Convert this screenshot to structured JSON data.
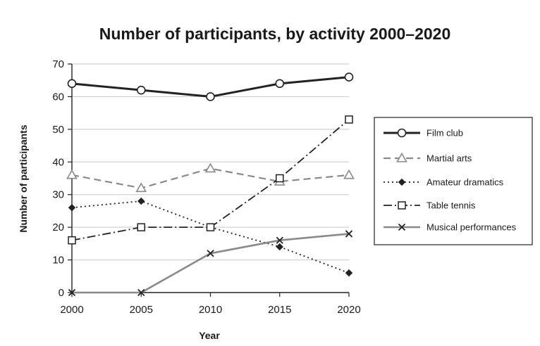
{
  "chart_data": {
    "type": "line",
    "title": "Number of participants, by activity 2000–2020",
    "xlabel": "Year",
    "ylabel": "Number of participants",
    "x": [
      2000,
      2005,
      2010,
      2015,
      2020
    ],
    "x_tick_labels": [
      "2000",
      "2005",
      "2010",
      "2015",
      "2020"
    ],
    "ylim": [
      0,
      70
    ],
    "y_ticks": [
      0,
      10,
      20,
      30,
      40,
      50,
      60,
      70
    ],
    "y_tick_labels": [
      "0",
      "10",
      "20",
      "30",
      "40",
      "50",
      "60",
      "70"
    ],
    "grid": true,
    "legend_position": "right",
    "series": [
      {
        "name": "Film club",
        "values": [
          64,
          62,
          60,
          64,
          66
        ],
        "color": "#222222",
        "line": "solid-thick",
        "marker": "circle"
      },
      {
        "name": "Martial arts",
        "values": [
          36,
          32,
          38,
          34,
          36
        ],
        "color": "#8a8a8a",
        "line": "dashed",
        "marker": "triangle"
      },
      {
        "name": "Amateur dramatics",
        "values": [
          26,
          28,
          20,
          14,
          6
        ],
        "color": "#222222",
        "line": "dotted",
        "marker": "diamond"
      },
      {
        "name": "Table tennis",
        "values": [
          16,
          20,
          20,
          35,
          53
        ],
        "color": "#222222",
        "line": "dash-dot",
        "marker": "square"
      },
      {
        "name": "Musical performances",
        "values": [
          0,
          0,
          12,
          16,
          18
        ],
        "color": "#8a8a8a",
        "line": "solid",
        "marker": "cross"
      }
    ]
  }
}
